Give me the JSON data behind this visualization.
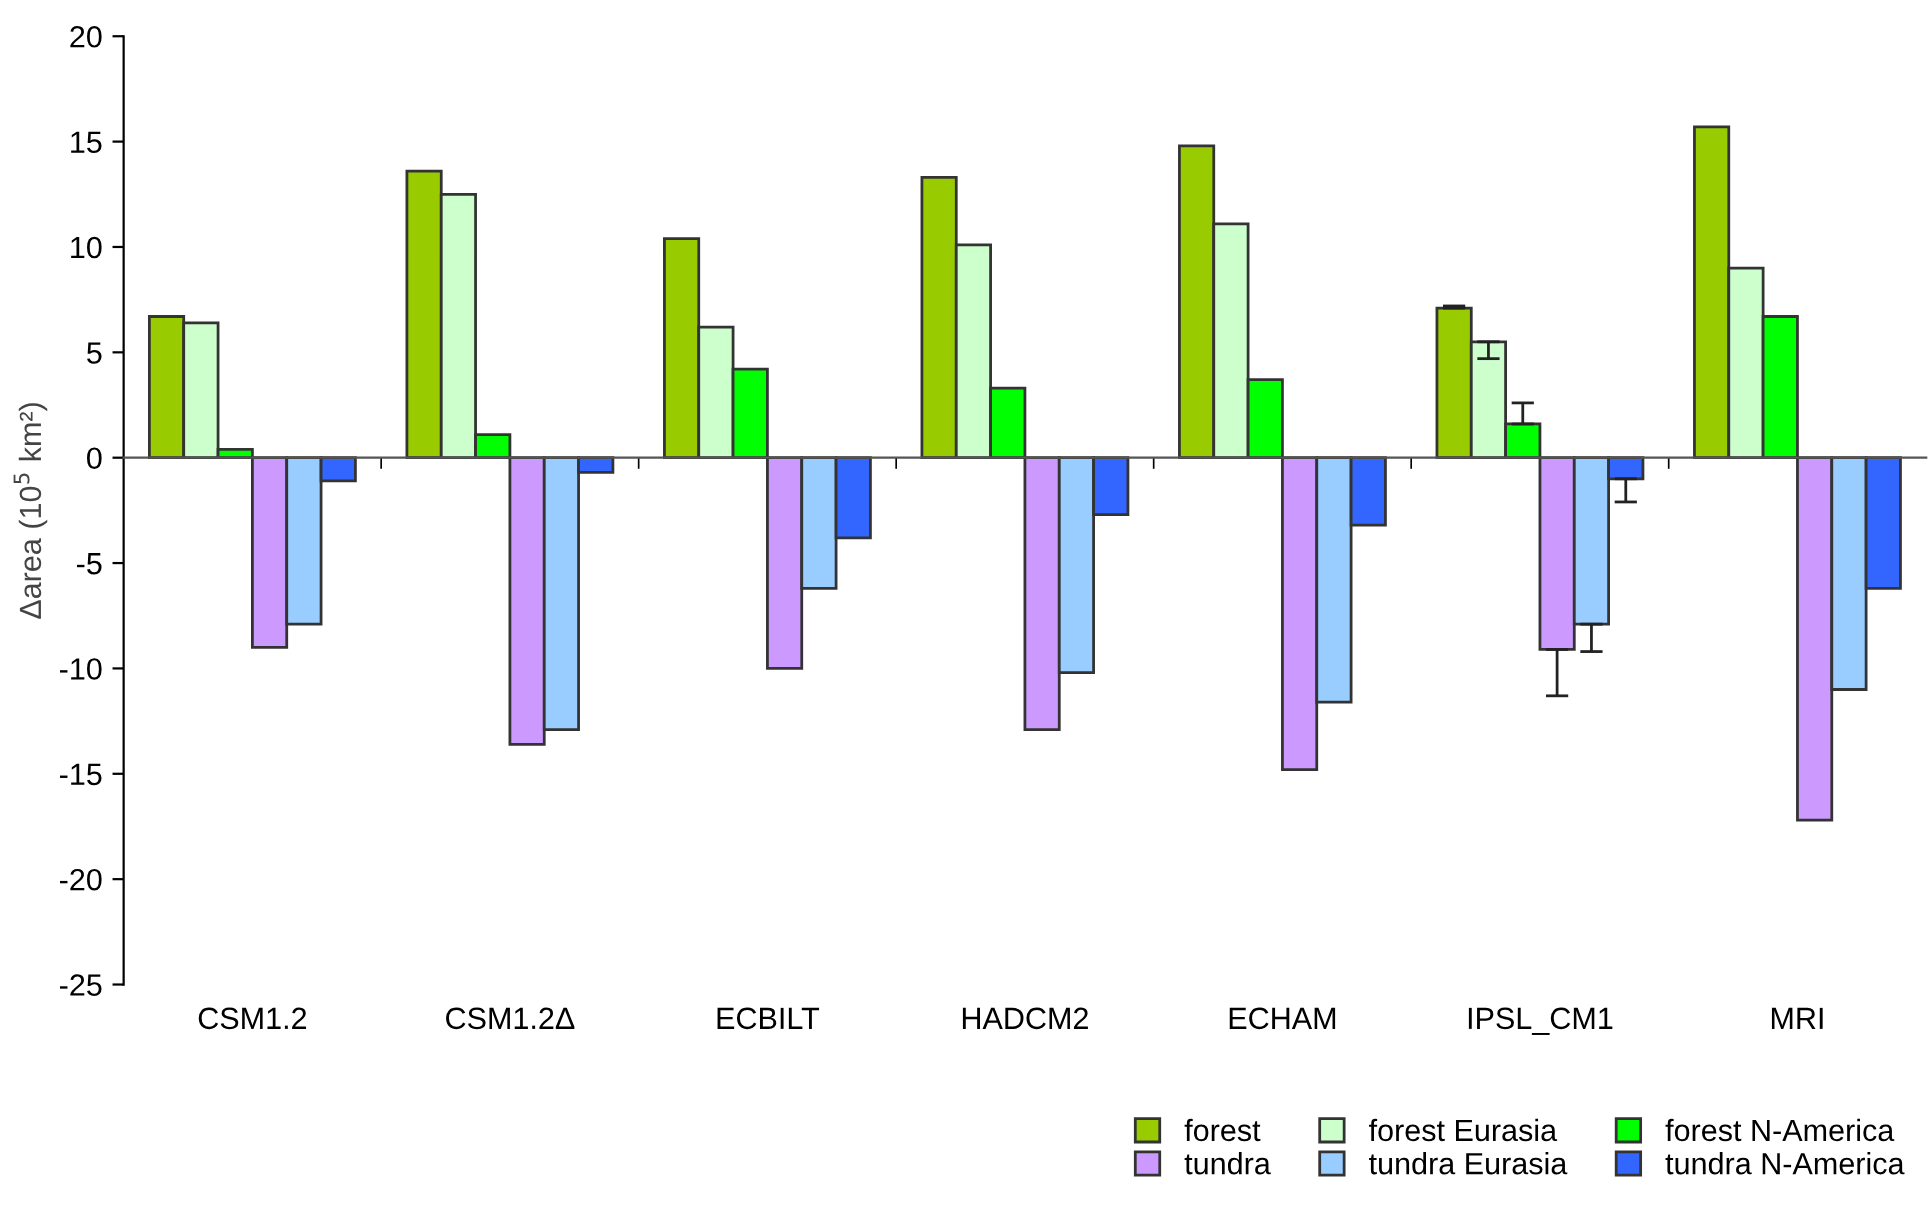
{
  "chart_data": {
    "type": "bar",
    "ylabel": "Δarea (10$^{5}$ km²)",
    "categories": [
      "CSM1.2",
      "CSM1.2Δ",
      "ECBILT",
      "HADCM2",
      "ECHAM",
      "IPSL_CM1",
      "MRI"
    ],
    "series": [
      {
        "name": "forest",
        "color": "#99cc00",
        "values": [
          6.7,
          13.6,
          10.4,
          13.3,
          14.8,
          7.1,
          15.7
        ],
        "errors": [
          null,
          null,
          null,
          null,
          null,
          [
            7.1,
            7.2
          ],
          null
        ]
      },
      {
        "name": "forest Eurasia",
        "color": "#ccffcc",
        "values": [
          6.4,
          12.5,
          6.2,
          10.1,
          11.1,
          5.5,
          9.0
        ],
        "errors": [
          null,
          null,
          null,
          null,
          null,
          [
            4.7,
            5.5
          ],
          null
        ]
      },
      {
        "name": "forest N-America",
        "color": "#00ff00",
        "values": [
          0.4,
          1.1,
          4.2,
          3.3,
          3.7,
          1.6,
          6.7
        ],
        "errors": [
          null,
          null,
          null,
          null,
          null,
          [
            1.6,
            2.6
          ],
          null
        ]
      },
      {
        "name": "tundra",
        "color": "#cc99ff",
        "values": [
          -9.0,
          -13.6,
          -10.0,
          -12.9,
          -14.8,
          -9.1,
          -17.2
        ],
        "errors": [
          null,
          null,
          null,
          null,
          null,
          [
            -11.3,
            -9.1
          ],
          null
        ]
      },
      {
        "name": "tundra Eurasia",
        "color": "#99ccff",
        "values": [
          -7.9,
          -12.9,
          -6.2,
          -10.2,
          -11.6,
          -7.9,
          -11.0
        ],
        "errors": [
          null,
          null,
          null,
          null,
          null,
          [
            -9.2,
            -7.9
          ],
          null
        ]
      },
      {
        "name": "tundra N-America",
        "color": "#3366ff",
        "values": [
          -1.1,
          -0.7,
          -3.8,
          -2.7,
          -3.2,
          -1.0,
          -6.2
        ],
        "errors": [
          null,
          null,
          null,
          null,
          null,
          [
            -2.1,
            -1.0
          ],
          null
        ]
      }
    ],
    "ylim": [
      -25,
      20
    ],
    "yticks": [
      -25,
      -20,
      -15,
      -10,
      -5,
      0,
      5,
      10,
      15,
      20
    ],
    "legend": "bottom right"
  }
}
